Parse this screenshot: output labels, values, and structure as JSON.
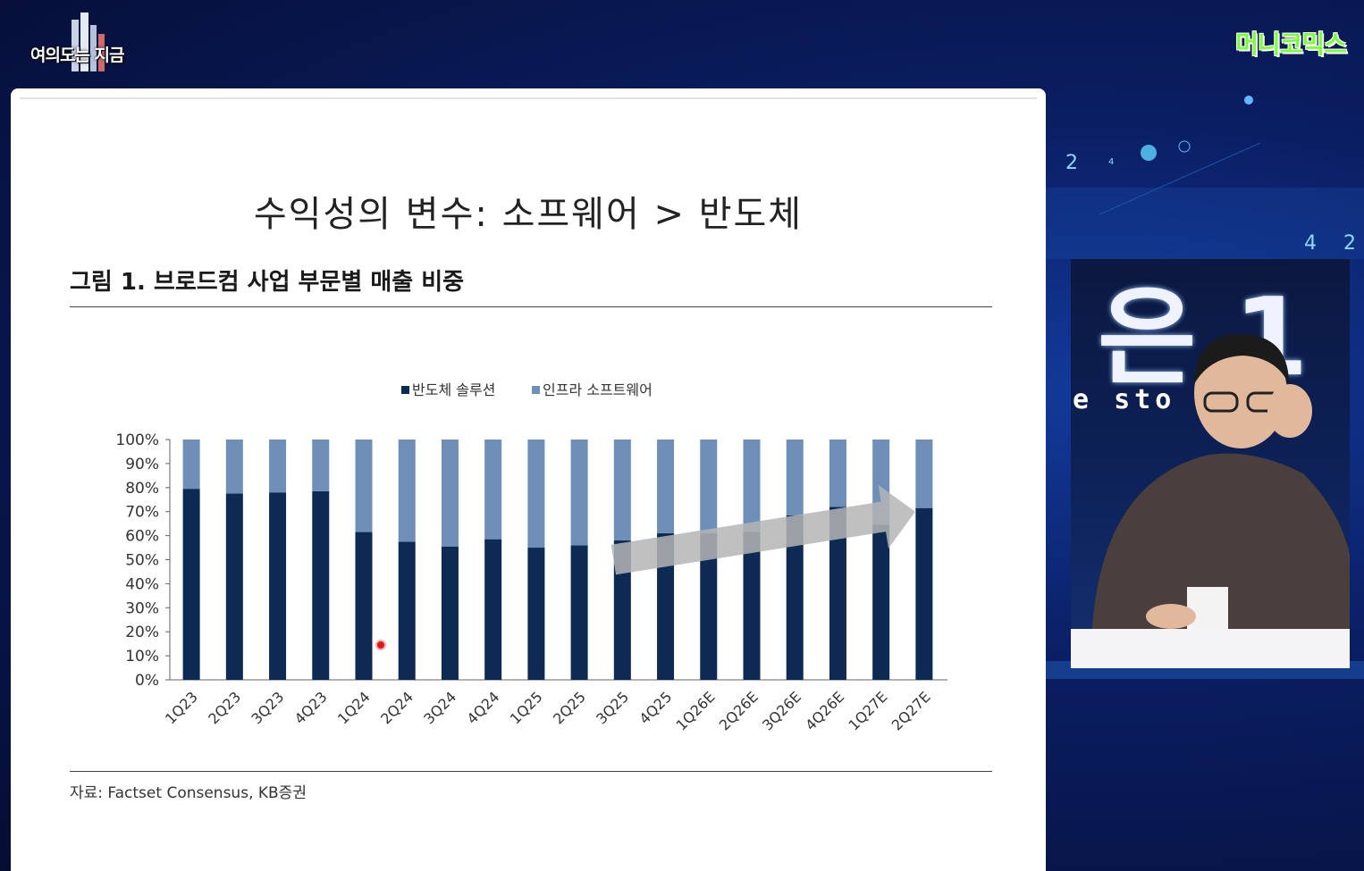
{
  "broadcast": {
    "show_title": "여의도는 지금",
    "channel": "머니코믹스",
    "background_numbers": [
      "2",
      "4",
      "4",
      "2"
    ],
    "studio_wall_text": "은 1",
    "studio_wall_ticker": "e sto    no"
  },
  "slide": {
    "headline": "수익성의 변수: 소프웨어 > 반도체",
    "figure_title": "그림 1. 브로드컴 사업 부문별 매출 비중",
    "source": "자료: Factset Consensus, KB증권"
  },
  "chart_data": {
    "type": "bar",
    "stacked": true,
    "categories": [
      "1Q23",
      "2Q23",
      "3Q23",
      "4Q23",
      "1Q24",
      "2Q24",
      "3Q24",
      "4Q24",
      "1Q25",
      "2Q25",
      "3Q25",
      "4Q25",
      "1Q26E",
      "2Q26E",
      "3Q26E",
      "4Q26E",
      "1Q27E",
      "2Q27E"
    ],
    "series": [
      {
        "name": "반도체 솔루션",
        "color": "#0d2a55",
        "values": [
          79.5,
          77.5,
          78,
          78.5,
          61.5,
          57.5,
          55.5,
          58.5,
          55,
          56,
          58,
          61,
          61,
          61.5,
          68.5,
          72,
          64.5,
          71.5
        ]
      },
      {
        "name": "인프라 소프트웨어",
        "color": "#6f8fb8",
        "values": [
          20.5,
          22.5,
          22,
          21.5,
          38.5,
          42.5,
          44.5,
          41.5,
          45,
          44,
          42,
          39,
          39,
          38.5,
          31.5,
          28,
          35.5,
          28.5
        ]
      }
    ],
    "yticks": [
      "0%",
      "10%",
      "20%",
      "30%",
      "40%",
      "50%",
      "60%",
      "70%",
      "80%",
      "90%",
      "100%"
    ],
    "ylim": [
      0,
      100
    ],
    "legend_position": "top-center",
    "grid": false,
    "trend_arrow": {
      "from_category": "3Q25",
      "to_category": "2Q27E",
      "color": "#b5b5b5"
    }
  }
}
